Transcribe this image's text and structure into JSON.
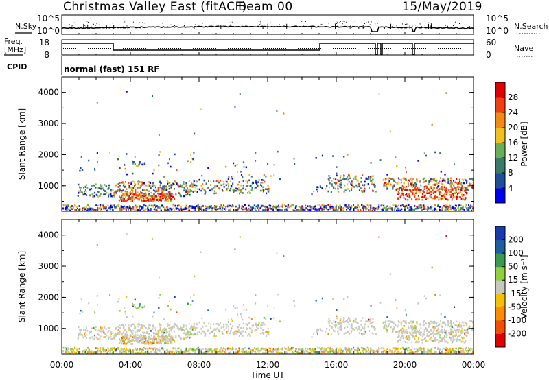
{
  "header": {
    "station": "Christmas Valley East (fitACF)",
    "beam": "Beam 00",
    "date": "15/May/2019"
  },
  "noise_panel": {
    "left_label": "N.Sky",
    "left_ticks": [
      "10^5",
      "10^0"
    ],
    "right_label": "N.Search",
    "right_ticks": [
      "10^5",
      "10^0"
    ]
  },
  "freq_panel": {
    "left_label_1": "Freq.",
    "left_label_2": "[MHz]",
    "left_ticks": [
      "18",
      "8"
    ],
    "right_label": "Nave",
    "right_ticks": [
      "60",
      "0"
    ]
  },
  "cpid_panel": {
    "label": "CPID",
    "mode": "normal (fast) 151 RF"
  },
  "colors": {
    "power": [
      "#0000ee",
      "#1f4f9a",
      "#3a7a6a",
      "#6aae55",
      "#f0c020",
      "#f58a10",
      "#f04010",
      "#e00000"
    ],
    "velocity": [
      "#e00000",
      "#f25000",
      "#ff8c00",
      "#f5c000",
      "#c8c8c0",
      "#90d040",
      "#3a9a50",
      "#1f5fa0",
      "#1a3ab0"
    ]
  },
  "chart_data": [
    {
      "type": "heatmap",
      "quantity": "power",
      "ylabel": "Slant Range [km]",
      "yticks": [
        1000,
        2000,
        3000,
        4000
      ],
      "ylim": [
        180,
        4500
      ],
      "xlabel": "Time UT",
      "xticks": [
        "00:00",
        "04:00",
        "08:00",
        "12:00",
        "16:00",
        "20:00",
        "00:00"
      ],
      "colorbar": {
        "label": "Power [dB]",
        "ticks": [
          "4",
          "8",
          "12",
          "16",
          "20",
          "24",
          "28"
        ],
        "range": [
          0,
          30
        ]
      }
    },
    {
      "type": "heatmap",
      "quantity": "velocity",
      "ylabel": "Slant Range [km]",
      "yticks": [
        1000,
        2000,
        3000,
        4000
      ],
      "ylim": [
        180,
        4500
      ],
      "xlabel": "Time UT",
      "xticks": [
        "00:00",
        "04:00",
        "08:00",
        "12:00",
        "16:00",
        "20:00",
        "00:00"
      ],
      "colorbar": {
        "label": "Velocity [m s⁻¹]",
        "ticks": [
          "200",
          "100",
          "50",
          "15",
          "-15",
          "-50",
          "-100",
          "-200"
        ]
      }
    }
  ]
}
